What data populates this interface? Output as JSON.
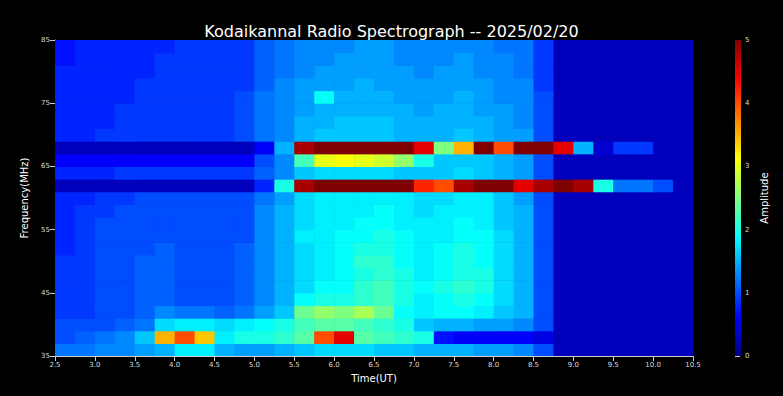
{
  "chart_data": {
    "type": "heatmap",
    "title": "Kodaikannal Radio Spectrograph -- 2025/02/20",
    "x_label": "Time(UT)",
    "y_label": "Frequency(MHz)",
    "xlim": [
      2.5,
      10.5
    ],
    "xticks": [
      2.5,
      {
        "value": 3,
        "label": "3.0"
      },
      3.5,
      {
        "value": 4,
        "label": "4.0"
      },
      4.5,
      {
        "value": 5,
        "label": "5.0"
      },
      5.5,
      {
        "value": 6,
        "label": "6.0"
      },
      6.5,
      {
        "value": 7,
        "label": "7.0"
      },
      7.5,
      {
        "value": 8,
        "label": "8.0"
      },
      8.5,
      {
        "value": 9,
        "label": "9.0"
      },
      9.5,
      {
        "value": 10,
        "label": "10.0"
      },
      10.5
    ],
    "ylim": [
      35,
      85
    ],
    "yticks": [
      35,
      45,
      55,
      65,
      75,
      85
    ],
    "grid": false,
    "x": [
      2.625,
      2.875,
      3.125,
      3.375,
      3.625,
      3.875,
      4.125,
      4.375,
      4.625,
      4.875,
      5.125,
      5.375,
      5.625,
      5.875,
      6.125,
      6.375,
      6.625,
      6.875,
      7.125,
      7.375,
      7.625,
      7.875,
      8.125,
      8.375,
      8.625,
      8.875,
      9.125,
      9.375,
      9.625,
      9.875,
      10.125,
      10.375
    ],
    "y": [
      36,
      38,
      40,
      42,
      44,
      46,
      48,
      50,
      52,
      54,
      56,
      58,
      60,
      62,
      64,
      66,
      68,
      70,
      72,
      74,
      76,
      78,
      80,
      82,
      84
    ],
    "values": [
      [
        1.2,
        1.2,
        1.3,
        1.3,
        1.4,
        1.5,
        1.8,
        1.8,
        1.5,
        1.4,
        1.4,
        1.5,
        1.6,
        1.7,
        1.7,
        1.7,
        1.6,
        1.6,
        1.5,
        1.5,
        1.5,
        1.4,
        1.4,
        1.3,
        1.0,
        0.3,
        0.3,
        0.3,
        0.3,
        0.3,
        0.3,
        0.3
      ],
      [
        1.0,
        1.1,
        1.2,
        1.3,
        1.6,
        3.5,
        4.0,
        3.4,
        1.8,
        2.0,
        2.0,
        2.1,
        2.3,
        4.0,
        4.5,
        2.3,
        2.2,
        2.1,
        2.0,
        0.7,
        0.6,
        0.6,
        0.6,
        0.6,
        0.5,
        0.3,
        0.3,
        0.3,
        0.3,
        0.3,
        0.3,
        0.3
      ],
      [
        1.0,
        1.0,
        1.0,
        1.1,
        1.2,
        1.7,
        1.8,
        1.8,
        1.7,
        1.8,
        1.9,
        2.0,
        2.2,
        2.3,
        2.3,
        2.2,
        2.1,
        2.0,
        1.6,
        1.5,
        1.5,
        1.4,
        1.4,
        1.3,
        1.0,
        0.3,
        0.3,
        0.3,
        0.3,
        0.3,
        0.3,
        0.3
      ],
      [
        0.9,
        0.9,
        1.0,
        1.0,
        1.1,
        1.3,
        1.2,
        1.2,
        1.1,
        1.2,
        1.4,
        1.6,
        2.4,
        2.6,
        2.5,
        2.7,
        2.4,
        1.9,
        1.8,
        1.9,
        1.9,
        1.8,
        1.6,
        1.5,
        1.0,
        0.3,
        0.3,
        0.3,
        0.3,
        0.3,
        0.3,
        0.3
      ],
      [
        0.9,
        0.9,
        1.0,
        1.0,
        1.1,
        1.1,
        1.0,
        1.0,
        1.0,
        1.1,
        1.3,
        1.5,
        1.9,
        2.0,
        2.0,
        2.1,
        2.2,
        2.0,
        1.8,
        1.9,
        2.0,
        1.9,
        1.7,
        1.5,
        1.0,
        0.3,
        0.3,
        0.3,
        0.3,
        0.3,
        0.3,
        0.3
      ],
      [
        0.9,
        0.9,
        1.0,
        1.0,
        1.1,
        1.1,
        1.0,
        1.0,
        1.0,
        1.1,
        1.3,
        1.5,
        1.7,
        1.9,
        1.9,
        2.1,
        2.2,
        2.0,
        1.9,
        2.0,
        2.1,
        2.0,
        1.7,
        1.5,
        1.0,
        0.3,
        0.3,
        0.3,
        0.3,
        0.3,
        0.3,
        0.3
      ],
      [
        0.9,
        0.9,
        1.0,
        1.0,
        1.1,
        1.1,
        1.0,
        1.0,
        1.0,
        1.1,
        1.3,
        1.5,
        1.7,
        1.8,
        1.9,
        2.0,
        2.1,
        2.0,
        1.8,
        1.9,
        2.0,
        2.0,
        1.7,
        1.5,
        1.0,
        0.3,
        0.3,
        0.3,
        0.3,
        0.3,
        0.3,
        0.3
      ],
      [
        0.9,
        0.9,
        1.0,
        1.0,
        1.1,
        1.1,
        1.0,
        1.0,
        1.0,
        1.1,
        1.3,
        1.5,
        1.7,
        1.8,
        1.9,
        2.1,
        2.1,
        1.9,
        1.8,
        1.9,
        2.0,
        1.9,
        1.7,
        1.5,
        1.0,
        0.3,
        0.3,
        0.3,
        0.3,
        0.3,
        0.3,
        0.3
      ],
      [
        0.8,
        0.9,
        1.0,
        1.0,
        1.0,
        1.1,
        1.0,
        1.0,
        1.0,
        1.1,
        1.3,
        1.5,
        1.7,
        1.8,
        1.9,
        2.0,
        2.0,
        1.9,
        1.8,
        1.9,
        2.0,
        1.9,
        1.7,
        1.5,
        1.0,
        0.3,
        0.3,
        0.3,
        0.3,
        0.3,
        0.3,
        0.3
      ],
      [
        0.8,
        0.9,
        1.0,
        1.0,
        1.0,
        1.0,
        1.0,
        1.0,
        1.0,
        1.0,
        1.3,
        1.5,
        1.8,
        1.8,
        1.9,
        1.9,
        2.0,
        1.9,
        1.8,
        1.8,
        1.9,
        1.9,
        1.7,
        1.5,
        1.0,
        0.3,
        0.3,
        0.3,
        0.3,
        0.3,
        0.3,
        0.3
      ],
      [
        0.8,
        0.9,
        1.0,
        1.0,
        1.0,
        1.0,
        1.0,
        1.0,
        1.0,
        1.0,
        1.3,
        1.5,
        1.7,
        1.8,
        1.8,
        1.9,
        1.9,
        1.8,
        1.8,
        1.8,
        1.9,
        1.8,
        1.6,
        1.5,
        1.0,
        0.3,
        0.3,
        0.3,
        0.3,
        0.3,
        0.3,
        0.3
      ],
      [
        0.8,
        0.9,
        0.9,
        1.0,
        1.0,
        1.0,
        1.0,
        1.0,
        1.0,
        1.0,
        1.3,
        1.5,
        1.7,
        1.8,
        1.8,
        1.8,
        1.9,
        1.8,
        1.7,
        1.8,
        1.8,
        1.8,
        1.6,
        1.5,
        1.0,
        0.3,
        0.3,
        0.3,
        0.3,
        0.3,
        0.3,
        0.3
      ],
      [
        0.8,
        0.8,
        0.9,
        0.9,
        1.0,
        1.0,
        1.0,
        1.0,
        1.0,
        1.0,
        1.2,
        1.4,
        1.7,
        1.8,
        1.8,
        1.8,
        1.8,
        1.8,
        1.7,
        1.7,
        1.8,
        1.8,
        1.6,
        1.4,
        1.0,
        0.3,
        0.3,
        0.3,
        0.3,
        0.3,
        0.3,
        0.3
      ],
      [
        0.3,
        0.3,
        0.3,
        0.3,
        0.3,
        0.3,
        0.3,
        0.3,
        0.3,
        0.3,
        0.8,
        2.0,
        4.8,
        5,
        5,
        5,
        5,
        5,
        4.2,
        4.0,
        4.8,
        5,
        5,
        4.5,
        4.8,
        5,
        4.8,
        2.0,
        1.2,
        1.2,
        1.0,
        0.3
      ],
      [
        0.8,
        0.8,
        0.8,
        0.9,
        0.9,
        0.9,
        0.9,
        0.9,
        0.9,
        0.9,
        1.1,
        1.3,
        1.6,
        1.7,
        1.7,
        1.7,
        1.7,
        1.6,
        1.6,
        1.6,
        1.7,
        1.6,
        1.5,
        1.4,
        1.0,
        0.3,
        0.3,
        0.3,
        0.3,
        0.3,
        0.3,
        0.3
      ],
      [
        0.6,
        0.6,
        0.6,
        0.6,
        0.6,
        0.6,
        0.6,
        0.6,
        0.6,
        0.6,
        1.0,
        1.3,
        2.2,
        3.0,
        3.1,
        3.0,
        2.9,
        2.6,
        2.0,
        1.6,
        1.6,
        1.6,
        1.5,
        1.4,
        1.0,
        0.3,
        0.3,
        0.3,
        0.3,
        0.3,
        0.3,
        0.3
      ],
      [
        0.3,
        0.3,
        0.3,
        0.3,
        0.3,
        0.3,
        0.3,
        0.3,
        0.3,
        0.3,
        0.6,
        1.5,
        4.8,
        5,
        5,
        5,
        5,
        5,
        4.5,
        2.5,
        3.5,
        5,
        4.0,
        5,
        5,
        4.5,
        1.5,
        0.4,
        0.9,
        0.9,
        0.3,
        0.3
      ],
      [
        0.8,
        0.8,
        0.9,
        0.9,
        0.9,
        0.9,
        0.9,
        0.9,
        0.9,
        1.0,
        1.2,
        1.3,
        1.5,
        1.6,
        1.6,
        1.6,
        1.6,
        1.5,
        1.5,
        1.5,
        1.6,
        1.5,
        1.4,
        1.4,
        1.0,
        0.3,
        0.3,
        0.3,
        0.3,
        0.3,
        0.3,
        0.3
      ],
      [
        0.8,
        0.8,
        0.8,
        0.9,
        0.9,
        0.9,
        0.9,
        0.9,
        0.9,
        1.0,
        1.2,
        1.3,
        1.5,
        1.5,
        1.6,
        1.6,
        1.6,
        1.5,
        1.5,
        1.5,
        1.5,
        1.5,
        1.4,
        1.3,
        1.0,
        0.3,
        0.3,
        0.3,
        0.3,
        0.3,
        0.3,
        0.3
      ],
      [
        0.8,
        0.8,
        0.8,
        0.9,
        0.9,
        0.9,
        0.9,
        0.9,
        0.9,
        1.0,
        1.2,
        1.3,
        1.4,
        1.5,
        1.5,
        1.5,
        1.5,
        1.5,
        1.4,
        1.5,
        1.5,
        1.4,
        1.4,
        1.3,
        1.0,
        0.3,
        0.3,
        0.3,
        0.3,
        0.3,
        0.3,
        0.3
      ],
      [
        0.8,
        0.8,
        0.8,
        0.8,
        0.9,
        0.9,
        0.9,
        0.9,
        0.9,
        1.0,
        1.2,
        1.3,
        1.4,
        1.9,
        1.5,
        1.5,
        1.5,
        1.4,
        1.4,
        1.4,
        1.5,
        1.4,
        1.3,
        1.3,
        1.0,
        0.3,
        0.3,
        0.3,
        0.3,
        0.3,
        0.3,
        0.3
      ],
      [
        0.8,
        0.8,
        0.8,
        0.8,
        0.9,
        0.9,
        0.9,
        0.9,
        0.9,
        0.9,
        1.1,
        1.3,
        1.4,
        1.4,
        1.4,
        1.5,
        1.4,
        1.4,
        1.4,
        1.4,
        1.4,
        1.4,
        1.3,
        1.3,
        0.9,
        0.3,
        0.3,
        0.3,
        0.3,
        0.3,
        0.3,
        0.3
      ],
      [
        0.8,
        0.8,
        0.8,
        0.8,
        0.8,
        0.9,
        0.9,
        0.9,
        0.9,
        0.9,
        1.1,
        1.2,
        1.3,
        1.4,
        1.4,
        1.4,
        1.4,
        1.4,
        1.3,
        1.4,
        1.4,
        1.3,
        1.3,
        1.2,
        0.9,
        0.3,
        0.3,
        0.3,
        0.3,
        0.3,
        0.3,
        0.3
      ],
      [
        0.7,
        0.8,
        0.8,
        0.8,
        0.8,
        0.9,
        0.9,
        0.9,
        0.9,
        0.9,
        1.1,
        1.2,
        1.3,
        1.3,
        1.4,
        1.4,
        1.4,
        1.3,
        1.3,
        1.3,
        1.4,
        1.3,
        1.3,
        1.2,
        0.9,
        0.3,
        0.3,
        0.3,
        0.3,
        0.3,
        0.3,
        0.3
      ],
      [
        0.7,
        0.8,
        0.8,
        0.8,
        0.8,
        0.8,
        0.9,
        0.9,
        0.9,
        0.9,
        1.1,
        1.2,
        1.3,
        1.3,
        1.3,
        1.4,
        1.4,
        1.3,
        1.3,
        1.3,
        1.3,
        1.3,
        1.2,
        1.2,
        0.9,
        0.3,
        0.3,
        0.3,
        0.3,
        0.3,
        0.3,
        0.3
      ]
    ],
    "colorbar": {
      "label": "Amplitude",
      "range": [
        0,
        5
      ],
      "ticks": [
        0,
        1,
        2,
        3,
        4,
        5
      ]
    }
  }
}
